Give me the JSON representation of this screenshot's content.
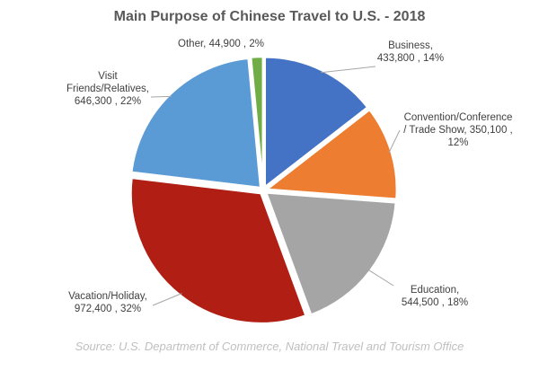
{
  "chart_data": {
    "type": "pie",
    "title": "Main Purpose of Chinese Travel to U.S. - 2018",
    "start_angle_deg": 0,
    "direction": "clockwise",
    "slices": [
      {
        "key": "business",
        "line1": "Business,",
        "line2": "433,800 , 14%",
        "line3": "",
        "value": 433800,
        "percent": 14,
        "color": "#4472C4"
      },
      {
        "key": "convention",
        "line1": "Convention/Conference",
        "line2": "/ Trade Show, 350,100 ,",
        "line3": "12%",
        "value": 350100,
        "percent": 12,
        "color": "#ED7D31"
      },
      {
        "key": "education",
        "line1": "Education,",
        "line2": "544,500 , 18%",
        "line3": "",
        "value": 544500,
        "percent": 18,
        "color": "#A5A5A5"
      },
      {
        "key": "vacation",
        "line1": "Vacation/Holiday,",
        "line2": "972,400 , 32%",
        "line3": "",
        "value": 972400,
        "percent": 32,
        "color": "#B11F14"
      },
      {
        "key": "visit",
        "line1": "Visit",
        "line2": "Friends/Relatives,",
        "line3": "646,300 , 22%",
        "value": 646300,
        "percent": 22,
        "color": "#5B9BD5"
      },
      {
        "key": "other",
        "line1": "Other, 44,900 , 2%",
        "line2": "",
        "line3": "",
        "value": 44900,
        "percent": 2,
        "color": "#70AD47"
      }
    ]
  },
  "source": "Source: U.S. Department of Commerce, National Travel and Tourism Office"
}
